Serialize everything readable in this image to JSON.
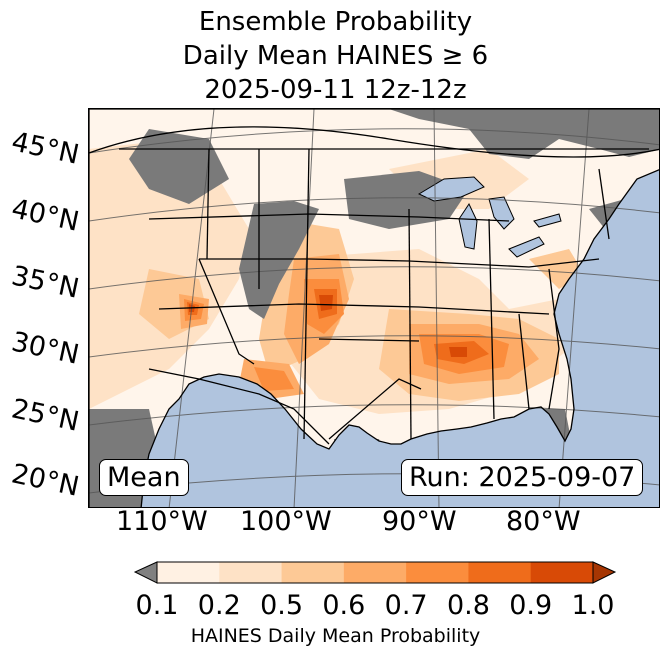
{
  "title": {
    "line1": "Ensemble Probability",
    "line2": "Daily Mean HAINES ≥ 6",
    "line3": "2025-09-11 12z-12z"
  },
  "map": {
    "lat_labels": [
      "45°N",
      "40°N",
      "35°N",
      "30°N",
      "25°N",
      "20°N"
    ],
    "lon_labels": [
      "110°W",
      "100°W",
      "90°W",
      "80°W"
    ],
    "stat_label": "Mean",
    "run_label": "Run: 2025-09-07",
    "colors": {
      "ocean": "#b0c4de",
      "no_data": "#7a7a7a",
      "land_low": "#fff5eb"
    }
  },
  "colorbar": {
    "label": "HAINES Daily Mean Probability",
    "ticks": [
      "0.1",
      "0.2",
      "0.5",
      "0.6",
      "0.7",
      "0.8",
      "0.9",
      "1.0"
    ],
    "colors": [
      "#fff1e3",
      "#fee2c6",
      "#fdc996",
      "#fdab67",
      "#fb8d3d",
      "#ef6c1b",
      "#d84a06"
    ],
    "under_color": "#808080",
    "over_color": "#a63603"
  }
}
